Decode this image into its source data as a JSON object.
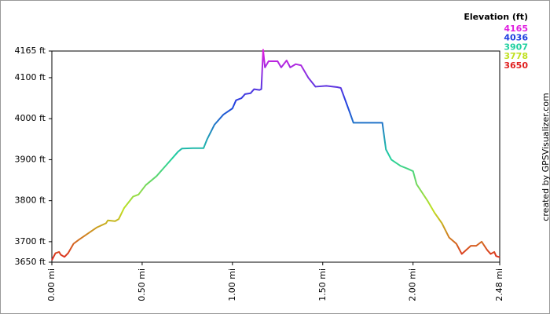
{
  "chart_data": {
    "type": "line",
    "legend_title": "Elevation (ft)",
    "credit": "created by GPSVisualizer.com",
    "color_scale": [
      {
        "value": 4165,
        "color": "#e020e0"
      },
      {
        "value": 4036,
        "color": "#2040e0"
      },
      {
        "value": 3907,
        "color": "#20d0a0"
      },
      {
        "value": 3778,
        "color": "#c0e020"
      },
      {
        "value": 3650,
        "color": "#e02020"
      }
    ],
    "x": [
      0.0,
      0.02,
      0.04,
      0.05,
      0.07,
      0.09,
      0.12,
      0.15,
      0.2,
      0.25,
      0.3,
      0.31,
      0.35,
      0.37,
      0.4,
      0.45,
      0.48,
      0.52,
      0.58,
      0.6,
      0.63,
      0.67,
      0.7,
      0.72,
      0.78,
      0.84,
      0.86,
      0.9,
      0.95,
      1.0,
      1.02,
      1.05,
      1.07,
      1.1,
      1.12,
      1.15,
      1.16,
      1.17,
      1.18,
      1.2,
      1.25,
      1.27,
      1.3,
      1.32,
      1.35,
      1.38,
      1.42,
      1.46,
      1.52,
      1.58,
      1.6,
      1.65,
      1.67,
      1.75,
      1.83,
      1.85,
      1.88,
      1.93,
      1.97,
      2.0,
      2.02,
      2.08,
      2.12,
      2.16,
      2.2,
      2.24,
      2.27,
      2.32,
      2.35,
      2.38,
      2.41,
      2.43,
      2.45,
      2.46,
      2.48
    ],
    "values": [
      3655,
      3672,
      3675,
      3668,
      3663,
      3672,
      3695,
      3705,
      3720,
      3735,
      3745,
      3752,
      3750,
      3755,
      3782,
      3810,
      3815,
      3838,
      3860,
      3870,
      3885,
      3905,
      3920,
      3927,
      3928,
      3928,
      3950,
      3985,
      4010,
      4025,
      4045,
      4050,
      4060,
      4062,
      4072,
      4070,
      4072,
      4168,
      4125,
      4140,
      4140,
      4125,
      4142,
      4125,
      4133,
      4130,
      4100,
      4078,
      4080,
      4077,
      4075,
      4015,
      3990,
      3990,
      3990,
      3925,
      3900,
      3885,
      3878,
      3872,
      3840,
      3800,
      3770,
      3745,
      3710,
      3695,
      3670,
      3690,
      3690,
      3700,
      3680,
      3670,
      3675,
      3665,
      3662
    ],
    "xlim": [
      0,
      2.48
    ],
    "ylim": [
      3650,
      4165
    ],
    "xticks": [
      {
        "value": 0,
        "label": "0.00 mi"
      },
      {
        "value": 0.5,
        "label": "0.50 mi"
      },
      {
        "value": 1.0,
        "label": "1.00 mi"
      },
      {
        "value": 1.5,
        "label": "1.50 mi"
      },
      {
        "value": 2.0,
        "label": "2.00 mi"
      },
      {
        "value": 2.48,
        "label": "2.48 mi"
      }
    ],
    "yticks": [
      {
        "value": 3650,
        "label": "3650 ft"
      },
      {
        "value": 3700,
        "label": "3700 ft"
      },
      {
        "value": 3800,
        "label": "3800 ft"
      },
      {
        "value": 3900,
        "label": "3900 ft"
      },
      {
        "value": 4000,
        "label": "4000 ft"
      },
      {
        "value": 4100,
        "label": "4100 ft"
      },
      {
        "value": 4165,
        "label": "4165 ft"
      }
    ]
  }
}
